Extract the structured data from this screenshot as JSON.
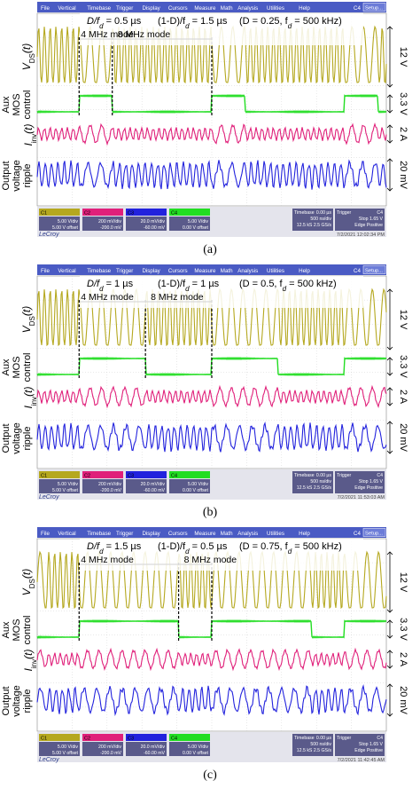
{
  "menu": {
    "items": [
      "File",
      "Vertical",
      "Timebase",
      "Trigger",
      "Display",
      "Cursors",
      "Measure",
      "Math",
      "Analysis",
      "Utilities",
      "Help"
    ],
    "channel_tag": "C4",
    "setup_label": "Setup..."
  },
  "axis_labels": {
    "vds": "V",
    "vds_sub": "DS",
    "vds_suffix": "(t)",
    "aux_line1": "Aux",
    "aux_line2": "MOS",
    "aux_line3": "control",
    "inv": "I",
    "inv_sub": "inv",
    "inv_suffix": "(t)",
    "out_line1": "Output",
    "out_line2": "voltage",
    "out_line3": "ripple"
  },
  "scales": {
    "vds": "12 V",
    "aux": "3.3 V",
    "inv": "2 A",
    "out": "20 mV"
  },
  "modes": {
    "mode_a": "4 MHz mode",
    "mode_b": "8 MHz mode"
  },
  "status": {
    "channels": [
      {
        "tag": "C1",
        "scale": "5.00 V/div",
        "offset": "5.00 V offset"
      },
      {
        "tag": "C2",
        "scale": "200 mV/div",
        "offset": "-200.0 mV"
      },
      {
        "tag": "C3",
        "scale": "20.0 mV/div",
        "offset": "-60.00 mV"
      },
      {
        "tag": "C4",
        "scale": "5.00 V/div",
        "offset": "0.00 V offset"
      }
    ],
    "timebase_label": "Timebase",
    "timebase_value": "0.00 µs",
    "trigger_label": "Trigger",
    "trigger_tag": "C4",
    "tb_rows": [
      "500 ns/div",
      "12.5 kS   2.5 GS/s"
    ],
    "trig_rows": [
      "Stop   1.65 V",
      "Edge   Positive"
    ],
    "brand": "LeCroy"
  },
  "panels": [
    {
      "caption": "(a)",
      "ann_left": "D/f",
      "ann_left_sub": "d",
      "ann_left_val": " = 0.5 µs",
      "ann_mid": "(1-D)/f",
      "ann_mid_sub": "d",
      "ann_mid_val": " = 1.5 µs",
      "ann_right_pre": "(D = 0.25, f",
      "ann_right_sub": "d",
      "ann_right_val": " = 500 kHz)",
      "timestamp": "7/2/2021 12:02:34 PM",
      "duty": 0.25
    },
    {
      "caption": "(b)",
      "ann_left": "D/f",
      "ann_left_sub": "d",
      "ann_left_val": " = 1 µs",
      "ann_mid": "(1-D)/f",
      "ann_mid_sub": "d",
      "ann_mid_val": " = 1 µs",
      "ann_right_pre": "(D = 0.5, f",
      "ann_right_sub": "d",
      "ann_right_val": " = 500 kHz)",
      "timestamp": "7/2/2021 11:53:03 AM",
      "duty": 0.5
    },
    {
      "caption": "(c)",
      "ann_left": "D/f",
      "ann_left_sub": "d",
      "ann_left_val": " = 1.5 µs",
      "ann_mid": "(1-D)/f",
      "ann_mid_sub": "d",
      "ann_mid_val": " = 0.5 µs",
      "ann_right_pre": "(D = 0.75, f",
      "ann_right_sub": "d",
      "ann_right_val": " = 500 kHz)",
      "timestamp": "7/2/2021 11:42:45 AM",
      "duty": 0.75
    }
  ],
  "colors": {
    "menu_bg": "#4a5bc4",
    "vds": "#b5a81f",
    "aux": "#22dd22",
    "inv": "#e0207a",
    "out": "#2222dd",
    "grid": "#c8c8c8"
  }
}
